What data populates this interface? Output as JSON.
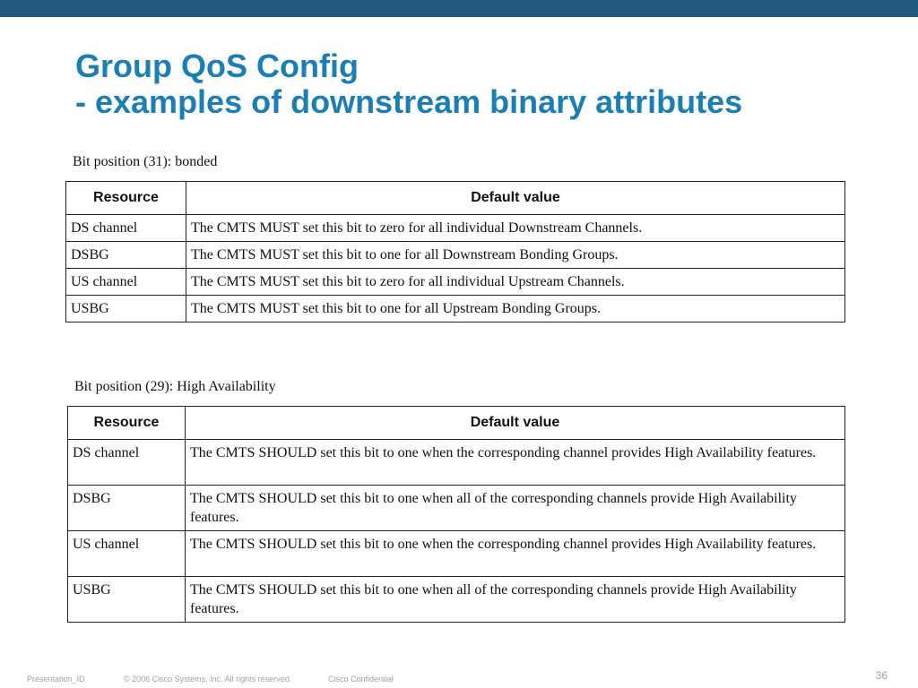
{
  "slide": {
    "title_line1": "Group QoS Config",
    "title_line2": "- examples of downstream binary attributes"
  },
  "table1": {
    "caption": "Bit position (31): bonded",
    "headers": [
      "Resource",
      "Default value"
    ],
    "rows": [
      {
        "resource": "DS channel",
        "value": "The CMTS MUST set this bit to zero for all individual Downstream Channels."
      },
      {
        "resource": "DSBG",
        "value": "The CMTS MUST set this bit to one for all Downstream Bonding Groups."
      },
      {
        "resource": "US channel",
        "value": "The CMTS MUST set this bit to zero for all individual Upstream Channels."
      },
      {
        "resource": "USBG",
        "value": "The CMTS MUST set this bit to one for all Upstream Bonding Groups."
      }
    ]
  },
  "table2": {
    "caption": "Bit position (29): High Availability",
    "headers": [
      "Resource",
      "Default value"
    ],
    "rows": [
      {
        "resource": "DS channel",
        "value": "The CMTS SHOULD set this bit to one when the corresponding channel provides High Availability features."
      },
      {
        "resource": "DSBG",
        "value": "The CMTS SHOULD set this bit to one when all of the corresponding channels provide High Availability features."
      },
      {
        "resource": "US channel",
        "value": "The CMTS SHOULD set this bit to one when the corresponding channel provides High Availability features."
      },
      {
        "resource": "USBG",
        "value": "The CMTS SHOULD set this bit to one when all of the corresponding channels provide High Availability features."
      }
    ]
  },
  "footer": {
    "presentation_id": "Presentation_ID",
    "copyright": "© 2006 Cisco Systems, Inc. All rights reserved.",
    "confidential": "Cisco Confidential",
    "page_number": "36"
  },
  "colors": {
    "top_bar": "#1f5a7a",
    "title": "#1b7fb3",
    "footer_text": "#9aa3ab"
  }
}
